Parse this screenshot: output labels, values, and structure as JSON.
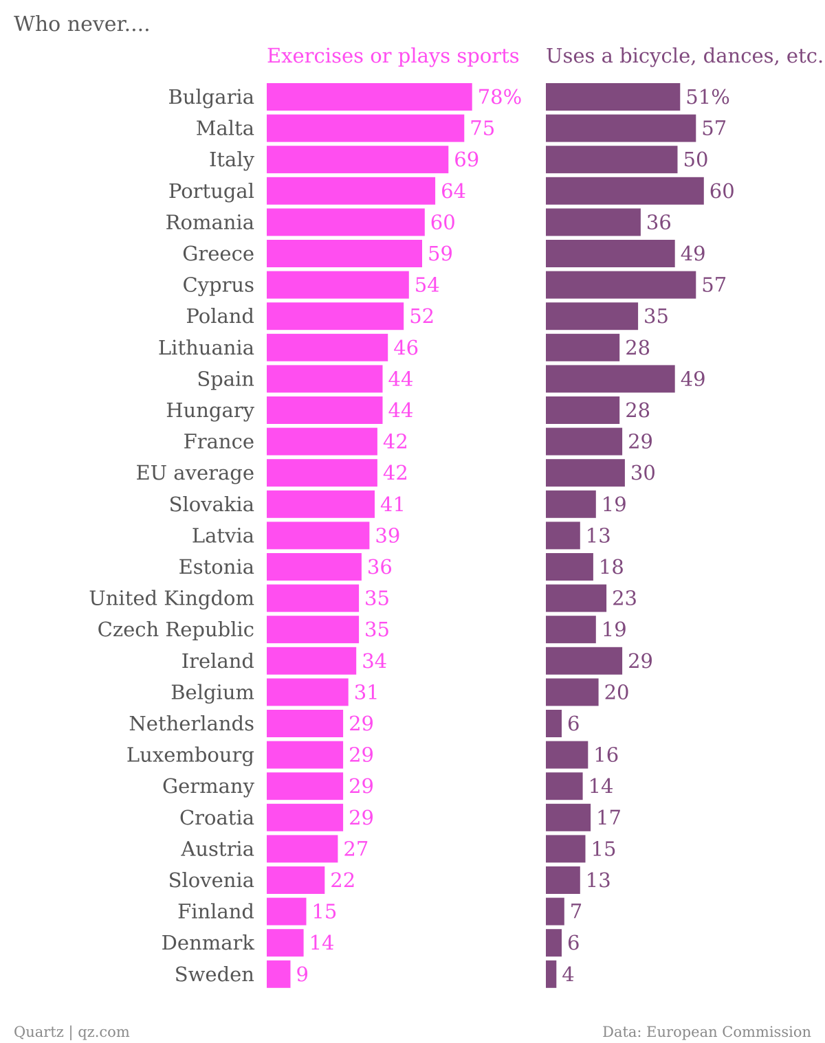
{
  "chart_data": {
    "type": "bar",
    "orientation": "horizontal",
    "title": "Who never....",
    "categories": [
      "Bulgaria",
      "Malta",
      "Italy",
      "Portugal",
      "Romania",
      "Greece",
      "Cyprus",
      "Poland",
      "Lithuania",
      "Spain",
      "Hungary",
      "France",
      "EU average",
      "Slovakia",
      "Latvia",
      "Estonia",
      "United Kingdom",
      "Czech Republic",
      "Ireland",
      "Belgium",
      "Netherlands",
      "Luxembourg",
      "Germany",
      "Croatia",
      "Austria",
      "Slovenia",
      "Finland",
      "Denmark",
      "Sweden"
    ],
    "series": [
      {
        "name": "Exercises or plays sports",
        "color": "#ff4ef0",
        "values": [
          78,
          75,
          69,
          64,
          60,
          59,
          54,
          52,
          46,
          44,
          44,
          42,
          42,
          41,
          39,
          36,
          35,
          35,
          34,
          31,
          29,
          29,
          29,
          29,
          27,
          22,
          15,
          14,
          9
        ],
        "labels": [
          "78%",
          "75",
          "69",
          "64",
          "60",
          "59",
          "54",
          "52",
          "46",
          "44",
          "44",
          "42",
          "42",
          "41",
          "39",
          "36",
          "35",
          "35",
          "34",
          "31",
          "29",
          "29",
          "29",
          "29",
          "27",
          "22",
          "15",
          "14",
          "9"
        ]
      },
      {
        "name": "Uses a bicycle, dances, etc.",
        "color": "#804a7e",
        "values": [
          51,
          57,
          50,
          60,
          36,
          49,
          57,
          35,
          28,
          49,
          28,
          29,
          30,
          19,
          13,
          18,
          23,
          19,
          29,
          20,
          6,
          16,
          14,
          17,
          15,
          13,
          7,
          6,
          4
        ],
        "labels": [
          "51%",
          "57",
          "50",
          "60",
          "36",
          "49",
          "57",
          "35",
          "28",
          "49",
          "28",
          "29",
          "30",
          "19",
          "13",
          "18",
          "23",
          "19",
          "29",
          "20",
          "6",
          "16",
          "14",
          "17",
          "15",
          "13",
          "7",
          "6",
          "4"
        ]
      }
    ],
    "xlim": [
      0,
      100
    ],
    "grid": false,
    "legend": "column headers above each panel",
    "category_label_color": "#555555"
  },
  "footer": {
    "source_left": "Quartz | qz.com",
    "source_right": "Data: European Commission"
  }
}
